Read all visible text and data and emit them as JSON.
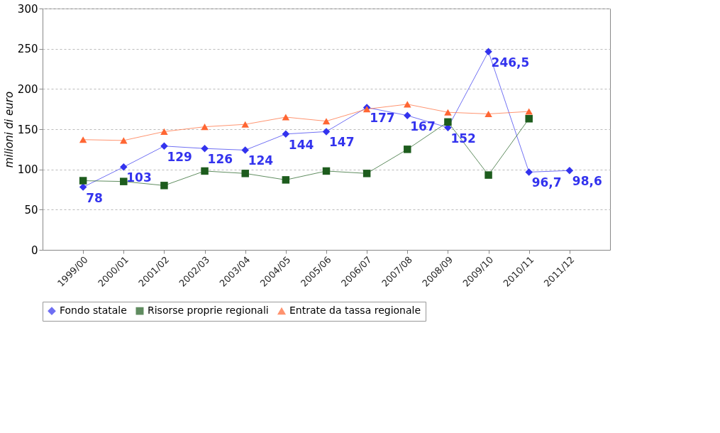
{
  "chart_data": {
    "type": "line",
    "ylabel": "milioni di euro",
    "categories": [
      "1999/00",
      "2000/01",
      "2001/02",
      "2002/03",
      "2003/04",
      "2004/05",
      "2005/06",
      "2006/07",
      "2007/08",
      "2008/09",
      "2009/10",
      "2010/11",
      "2011/12"
    ],
    "series": [
      {
        "name": "Fondo statale",
        "color": "#3333ee",
        "marker": "diamond",
        "values": [
          78,
          103,
          129,
          126,
          124,
          144,
          147,
          177,
          167,
          152,
          246.5,
          96.7,
          98.6
        ],
        "value_labels": [
          "78",
          "103",
          "129",
          "126",
          "124",
          "144",
          "147",
          "177",
          "167",
          "152",
          "246,5",
          "96,7",
          "98,6"
        ]
      },
      {
        "name": "Risorse proprie regionali",
        "color": "#1d5c1d",
        "marker": "square",
        "values": [
          86,
          85,
          80,
          98,
          95,
          87,
          98,
          95,
          125,
          159,
          93,
          163,
          null
        ]
      },
      {
        "name": "Entrate da tassa regionale",
        "color": "#ff6633",
        "marker": "triangle",
        "values": [
          137,
          136,
          147,
          153,
          156,
          165,
          160,
          175,
          181,
          171,
          169,
          172,
          null
        ]
      }
    ],
    "ylim": [
      0,
      300
    ],
    "yticks": [
      0,
      50,
      100,
      150,
      200,
      250,
      300
    ],
    "grid": "y",
    "legend": "bottom"
  }
}
